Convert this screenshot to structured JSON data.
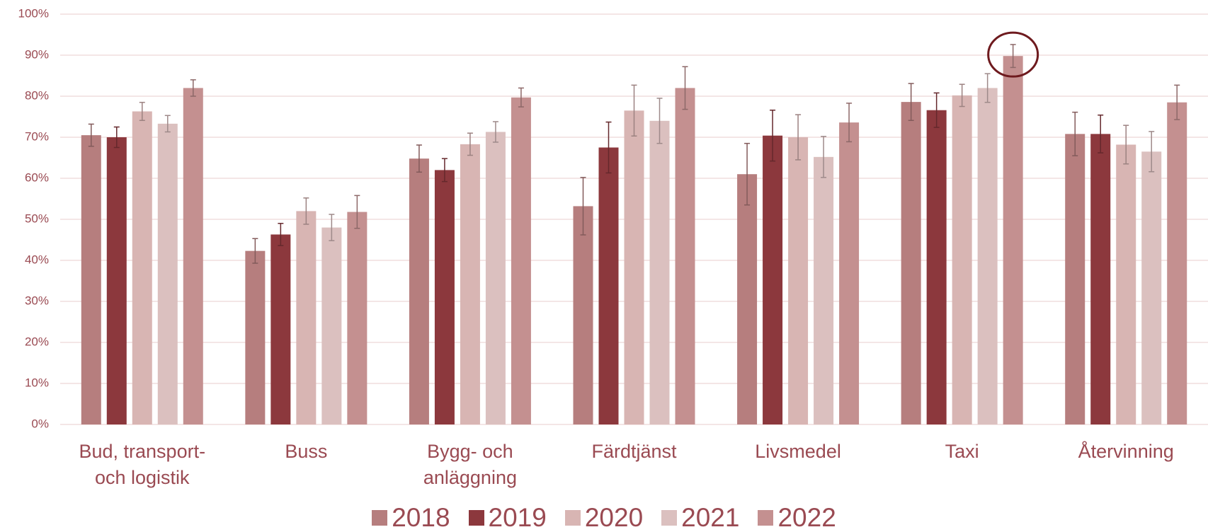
{
  "chart_data": {
    "type": "bar",
    "categories": [
      "Bud, transport- och logistik",
      "Buss",
      "Bygg- och anläggning",
      "Färdtjänst",
      "Livsmedel",
      "Taxi",
      "Återvinning"
    ],
    "series": [
      {
        "name": "2018",
        "color": "#b67e7e",
        "values": [
          70.5,
          42.3,
          64.8,
          53.2,
          61,
          78.6,
          70.8
        ],
        "errors": [
          2.7,
          3,
          3.3,
          7,
          7.5,
          4.5,
          5.3
        ]
      },
      {
        "name": "2019",
        "color": "#8c383d",
        "values": [
          70,
          46.3,
          62,
          67.5,
          70.4,
          76.6,
          70.8
        ],
        "errors": [
          2.5,
          2.7,
          2.8,
          6.2,
          6.2,
          4.2,
          4.6
        ]
      },
      {
        "name": "2020",
        "color": "#d8b5b3",
        "values": [
          76.3,
          52,
          68.3,
          76.5,
          70,
          80.2,
          68.2
        ],
        "errors": [
          2.2,
          3.2,
          2.7,
          6.2,
          5.5,
          2.7,
          4.7
        ]
      },
      {
        "name": "2021",
        "color": "#dbc0bf",
        "values": [
          73.3,
          48,
          71.3,
          74,
          65.2,
          82,
          66.5
        ],
        "errors": [
          2,
          3.2,
          2.5,
          5.5,
          5,
          3.5,
          4.9
        ]
      },
      {
        "name": "2022",
        "color": "#c49090",
        "values": [
          82,
          51.8,
          79.7,
          82,
          73.6,
          89.8,
          78.5
        ],
        "errors": [
          2,
          4,
          2.3,
          5.2,
          4.7,
          2.8,
          4.2
        ]
      }
    ],
    "ylim": [
      0,
      100
    ],
    "yticks": [
      {
        "value": 0,
        "label": "0%"
      },
      {
        "value": 10,
        "label": "10%"
      },
      {
        "value": 20,
        "label": "20%"
      },
      {
        "value": 30,
        "label": "30%"
      },
      {
        "value": 40,
        "label": "40%"
      },
      {
        "value": 50,
        "label": "50%"
      },
      {
        "value": 60,
        "label": "60%"
      },
      {
        "value": 70,
        "label": "70%"
      },
      {
        "value": 80,
        "label": "80%"
      },
      {
        "value": 90,
        "label": "90%"
      },
      {
        "value": 100,
        "label": "100%"
      }
    ],
    "grid": true,
    "legend": "bottom"
  }
}
